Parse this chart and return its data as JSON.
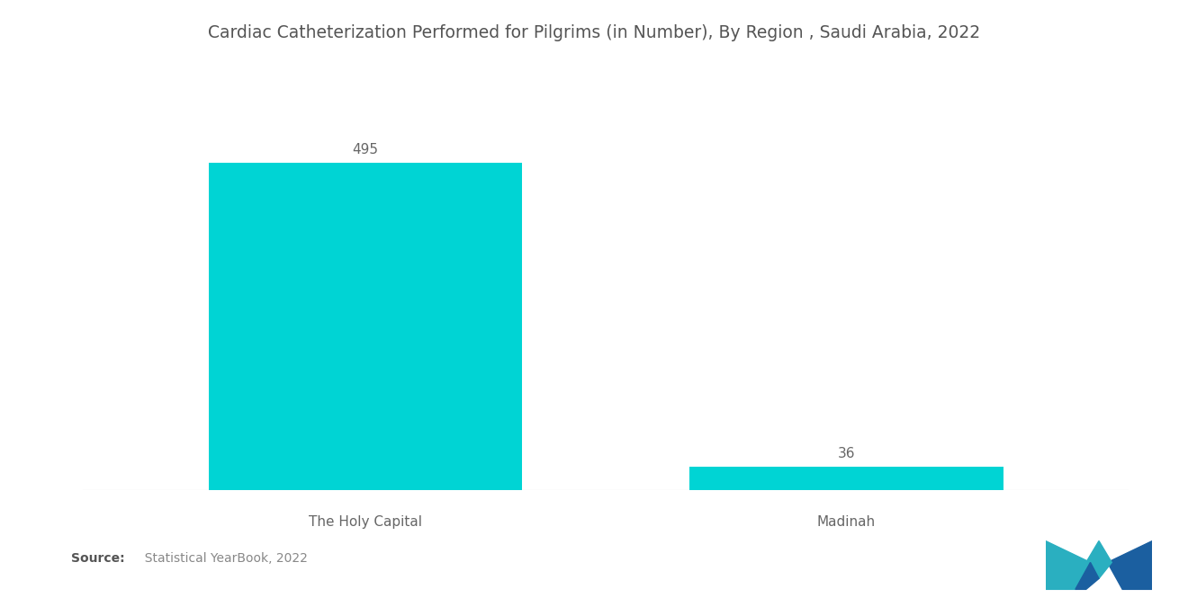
{
  "title": "Cardiac Catheterization Performed for Pilgrims (in Number), By Region , Saudi Arabia, 2022",
  "categories": [
    "The Holy Capital",
    "Madinah"
  ],
  "values": [
    495,
    36
  ],
  "bar_color": "#00D4D4",
  "background_color": "#ffffff",
  "title_fontsize": 13.5,
  "label_fontsize": 11,
  "value_fontsize": 11,
  "source_bold": "Source:",
  "source_rest": "  Statistical YearBook, 2022",
  "ylim": [
    0,
    560
  ],
  "bar_width": 0.3,
  "x_positions": [
    0.27,
    0.73
  ]
}
